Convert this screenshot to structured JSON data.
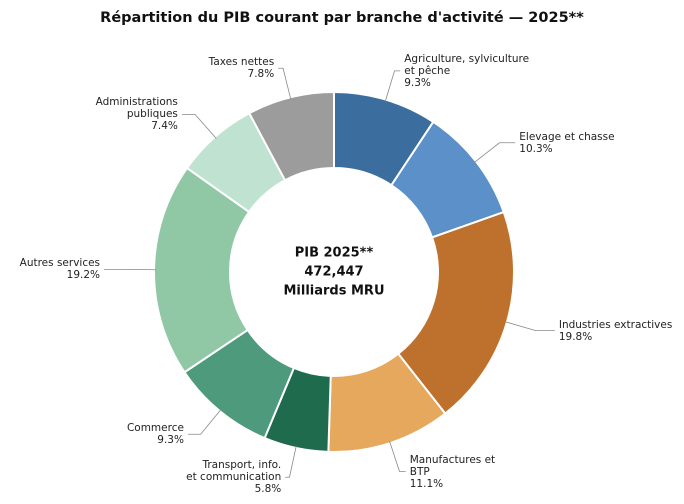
{
  "chart_data": {
    "type": "donut",
    "title": "Répartition du PIB courant par branche d'activité — 2025**",
    "center_text": "PIB 2025**\n472,447\nMilliards MRU",
    "categories": [
      "Agriculture, sylviculture\net pêche",
      "Elevage et chasse",
      "Industries extractives",
      "Manufactures et\nBTP",
      "Transport, info.\net communication",
      "Commerce",
      "Autres services",
      "Administrations\npubliques",
      "Taxes nettes"
    ],
    "values": [
      9.3,
      10.3,
      19.8,
      11.1,
      5.8,
      9.3,
      19.2,
      7.4,
      7.8
    ],
    "value_labels": [
      "9.3%",
      "10.3%",
      "19.8%",
      "11.1%",
      "5.8%",
      "9.3%",
      "19.2%",
      "7.4%",
      "7.8%"
    ],
    "colors": [
      "#3b6e9f",
      "#5b90c8",
      "#bd712c",
      "#e5a85c",
      "#1f6b4d",
      "#4d9a7c",
      "#90c8a5",
      "#bfe3d0",
      "#9c9c9c"
    ]
  }
}
